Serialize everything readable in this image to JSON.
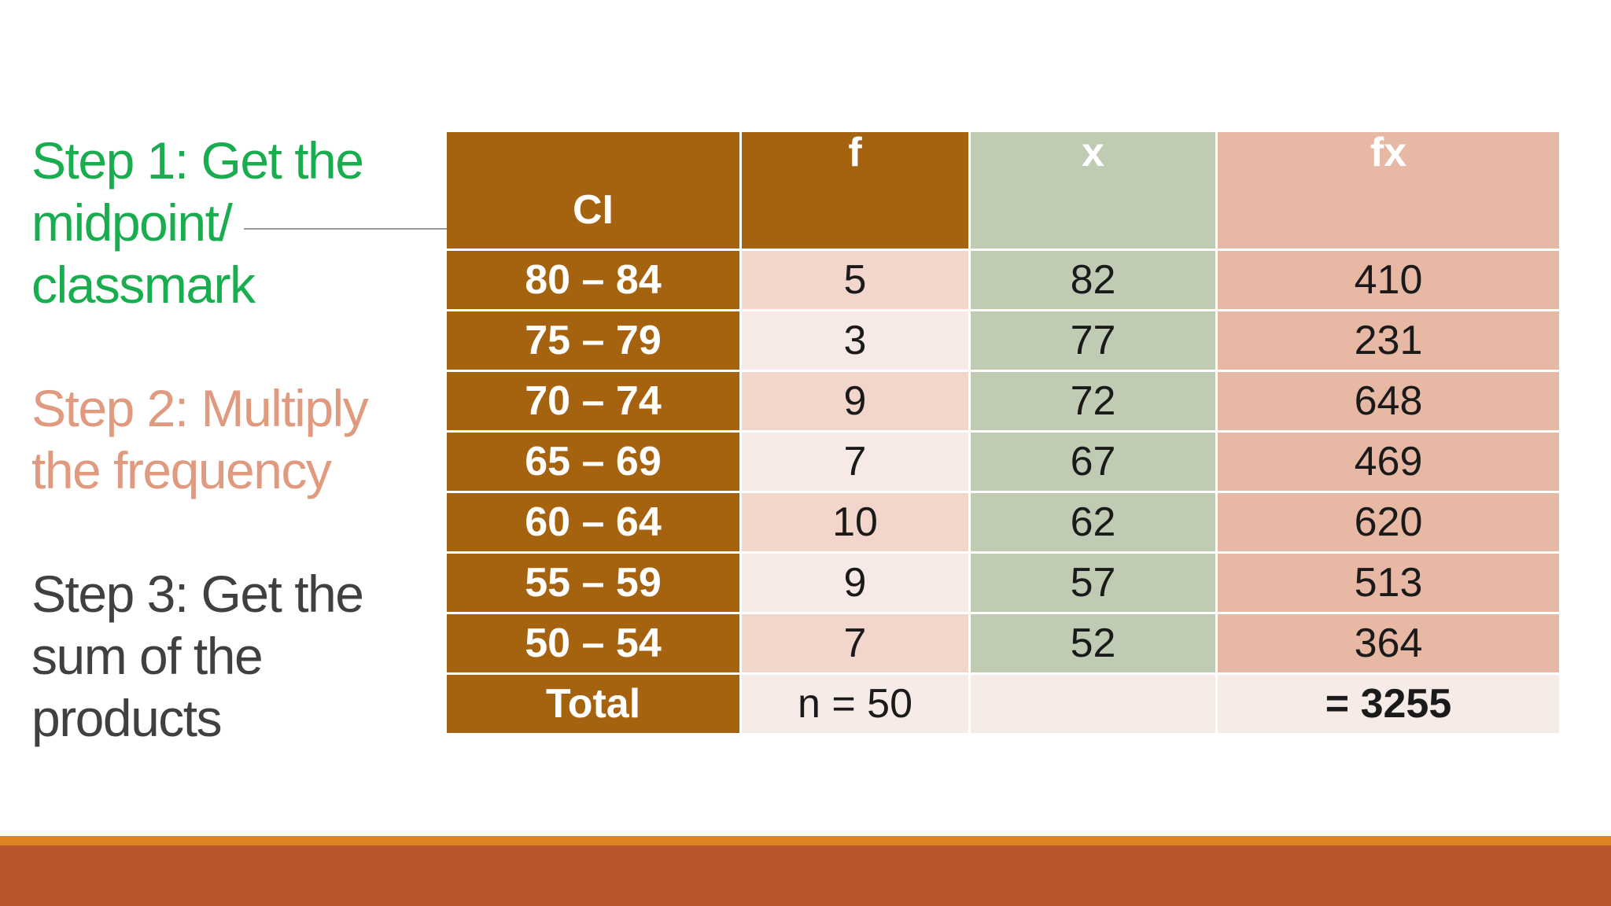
{
  "steps": [
    {
      "text": "Step 1: Get the midpoint/ classmark"
    },
    {
      "text": "Step 2: Multiply the frequency"
    },
    {
      "text": "Step 3: Get the sum of the products"
    }
  ],
  "table": {
    "headers": {
      "ci": "CI",
      "f": "f",
      "x": "x",
      "fx": "fx"
    },
    "rows": [
      {
        "ci": "80 – 84",
        "f": "5",
        "x": "82",
        "fx": "410"
      },
      {
        "ci": "75 – 79",
        "f": "3",
        "x": "77",
        "fx": "231"
      },
      {
        "ci": "70 – 74",
        "f": "9",
        "x": "72",
        "fx": "648"
      },
      {
        "ci": "65 – 69",
        "f": "7",
        "x": "67",
        "fx": "469"
      },
      {
        "ci": "60 – 64",
        "f": "10",
        "x": "62",
        "fx": "620"
      },
      {
        "ci": "55 – 59",
        "f": "9",
        "x": "57",
        "fx": "513"
      },
      {
        "ci": "50 – 54",
        "f": "7",
        "x": "52",
        "fx": "364"
      }
    ],
    "total": {
      "ci": "Total",
      "f": "n = 50",
      "x": "",
      "fx": "= 3255"
    }
  },
  "colors": {
    "step1": "#19ad4f",
    "step2": "#df9a7f",
    "step3": "#404040",
    "ci_column": "#a5620f",
    "x_column": "#c0cbb4",
    "fx_column": "#e7b8a4",
    "bottom_bar": "#b9562b",
    "bottom_stripe": "#de8422"
  }
}
